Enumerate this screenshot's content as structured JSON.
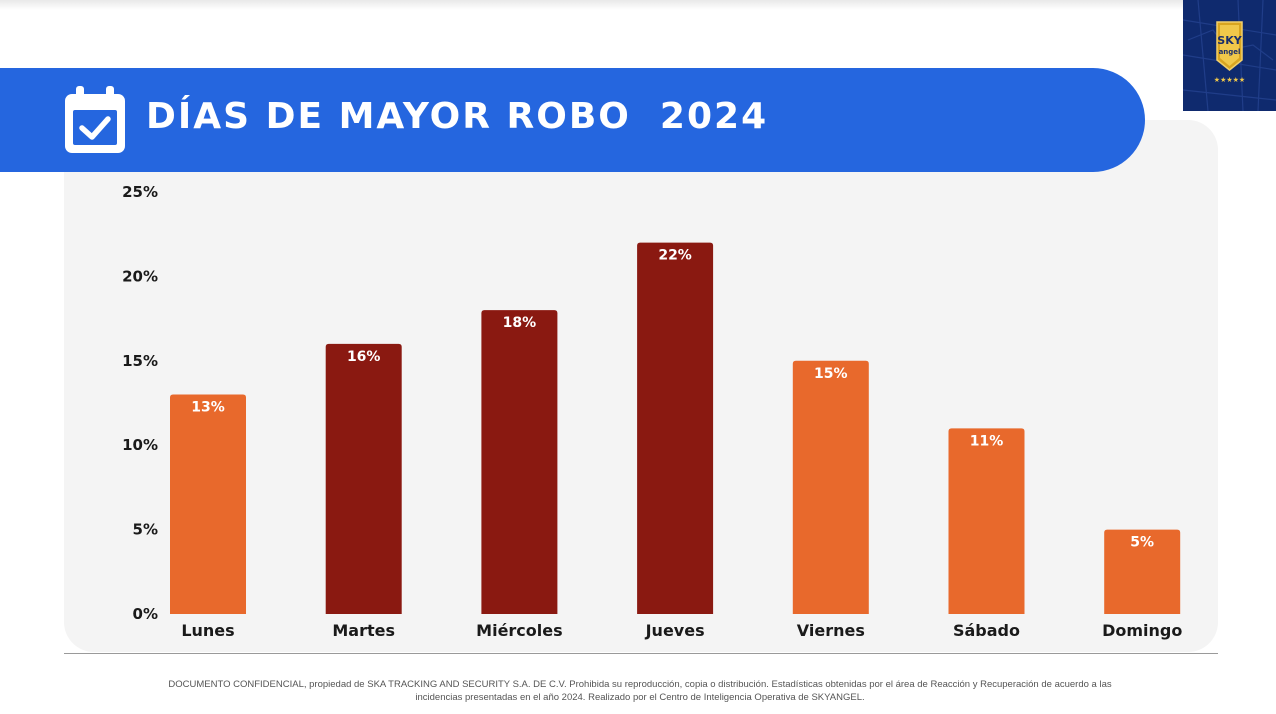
{
  "header": {
    "title": "DÍAS DE MAYOR ROBO  2024"
  },
  "logo": {
    "line1": "SKY",
    "line2": "angel",
    "stars": "★★★★★"
  },
  "colors": {
    "banner": "#2566df",
    "bar_orange": "#e8692c",
    "bar_dark_red": "#8a1911",
    "panel": "#f4f4f4"
  },
  "chart_data": {
    "type": "bar",
    "title": "DÍAS DE MAYOR ROBO  2024",
    "xlabel": "",
    "ylabel": "",
    "ylim": [
      0,
      25
    ],
    "y_ticks": [
      0,
      5,
      10,
      15,
      20,
      25
    ],
    "y_tick_labels": [
      "0%",
      "5%",
      "10%",
      "15%",
      "20%",
      "25%"
    ],
    "categories": [
      "Lunes",
      "Martes",
      "Miércoles",
      "Jueves",
      "Viernes",
      "Sábado",
      "Domingo"
    ],
    "values": [
      13,
      16,
      18,
      22,
      15,
      11,
      5
    ],
    "value_labels": [
      "13%",
      "16%",
      "18%",
      "22%",
      "15%",
      "11%",
      "5%"
    ],
    "bar_colors": [
      "#e8692c",
      "#8a1911",
      "#8a1911",
      "#8a1911",
      "#e8692c",
      "#e8692c",
      "#e8692c"
    ],
    "grid": false,
    "legend": "none"
  },
  "footer": {
    "text": "DOCUMENTO CONFIDENCIAL, propiedad de SKA TRACKING AND SECURITY S.A. DE C.V. Prohibida su reproducción, copia o distribución. Estadísticas obtenidas por el área de Reacción y Recuperación de acuerdo a las incidencias presentadas en el año 2024. Realizado por el Centro de Inteligencia Operativa de SKYANGEL."
  }
}
